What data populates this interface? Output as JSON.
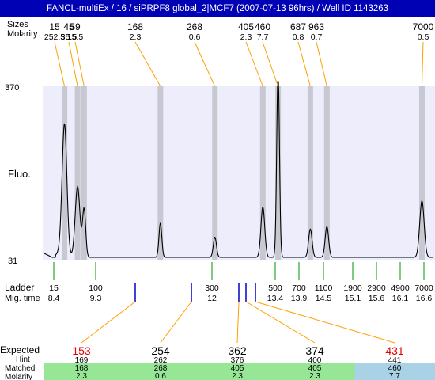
{
  "title": "FANCL-multiEx / 16 / siPRPF8 global_2|MCF7 (2007-07-13 96hrs) / Well ID 1143263",
  "header": {
    "sizes_label": "Sizes",
    "molarity_label": "Molarity"
  },
  "axis": {
    "y_top": "370",
    "y_bottom": "31",
    "y_label": "Fluo."
  },
  "ladder_labels": {
    "ladder": "Ladder",
    "mig_time": "Mig. time"
  },
  "table_labels": {
    "expected": "Expected",
    "hint": "Hint",
    "matched": "Matched",
    "molarity": "Molarity"
  },
  "colors": {
    "title_bg": "#0000b4",
    "plot_bg": "#ededfb",
    "band": "#c8c8d2",
    "ladder_tick": "#009600",
    "marker_tick": "#0000c8",
    "connector": "#ffa000",
    "red_text": "#e60000",
    "matched_green": "#96e696",
    "matched_blue": "#aad2e6"
  },
  "chart_data": {
    "type": "line",
    "ylim": [
      31,
      370
    ],
    "xlim": [
      7.9,
      16.9
    ],
    "y_ticks": [
      "370",
      "31"
    ],
    "peaks": [
      {
        "size": "15",
        "molarity": "252.5",
        "time": 8.4,
        "height": 255
      },
      {
        "size": "45",
        "molarity": "35.5",
        "time": 8.7,
        "height": 140
      },
      {
        "size": "59",
        "molarity": "15.5",
        "time": 8.85,
        "height": 95
      },
      {
        "size": "168",
        "molarity": "2.3",
        "time": 10.6,
        "height": 68
      },
      {
        "size": "268",
        "molarity": "0.6",
        "time": 11.85,
        "height": 40
      },
      {
        "size": "405",
        "molarity": "2.3",
        "time": 12.95,
        "height": 100
      },
      {
        "size": "460",
        "molarity": "7.7",
        "time": 13.3,
        "height": 375
      },
      {
        "size": "687",
        "molarity": "0.8",
        "time": 14.04,
        "height": 56
      },
      {
        "size": "963",
        "molarity": "0.7",
        "time": 14.42,
        "height": 61
      },
      {
        "size": "7000",
        "molarity": "0.5",
        "time": 16.6,
        "height": 112
      }
    ],
    "ladder": [
      {
        "size": "15",
        "time": "8.4"
      },
      {
        "size": "100",
        "time": "9.3"
      },
      {
        "size": "300",
        "time": "12"
      },
      {
        "size": "500",
        "time": "13.4"
      },
      {
        "size": "700",
        "time": "13.9"
      },
      {
        "size": "1100",
        "time": "14.5"
      },
      {
        "size": "1900",
        "time": "15.1"
      },
      {
        "size": "2900",
        "time": "15.6"
      },
      {
        "size": "4900",
        "time": "16.1"
      },
      {
        "size": "7000",
        "time": "16.6"
      }
    ],
    "expected": [
      {
        "expected": "153",
        "hint": "169",
        "matched": "168",
        "molarity": "2.3",
        "highlight": true,
        "row": "green"
      },
      {
        "expected": "254",
        "hint": "262",
        "matched": "268",
        "molarity": "0.6",
        "highlight": false,
        "row": "green"
      },
      {
        "expected": "362",
        "hint": "376",
        "matched": "405",
        "molarity": "2.3",
        "highlight": false,
        "row": "green"
      },
      {
        "expected": "374",
        "hint": "400",
        "matched": "405",
        "molarity": "2.3",
        "highlight": false,
        "row": "green"
      },
      {
        "expected": "431",
        "hint": "441",
        "matched": "460",
        "molarity": "7.7",
        "highlight": true,
        "row": "blue"
      }
    ]
  }
}
